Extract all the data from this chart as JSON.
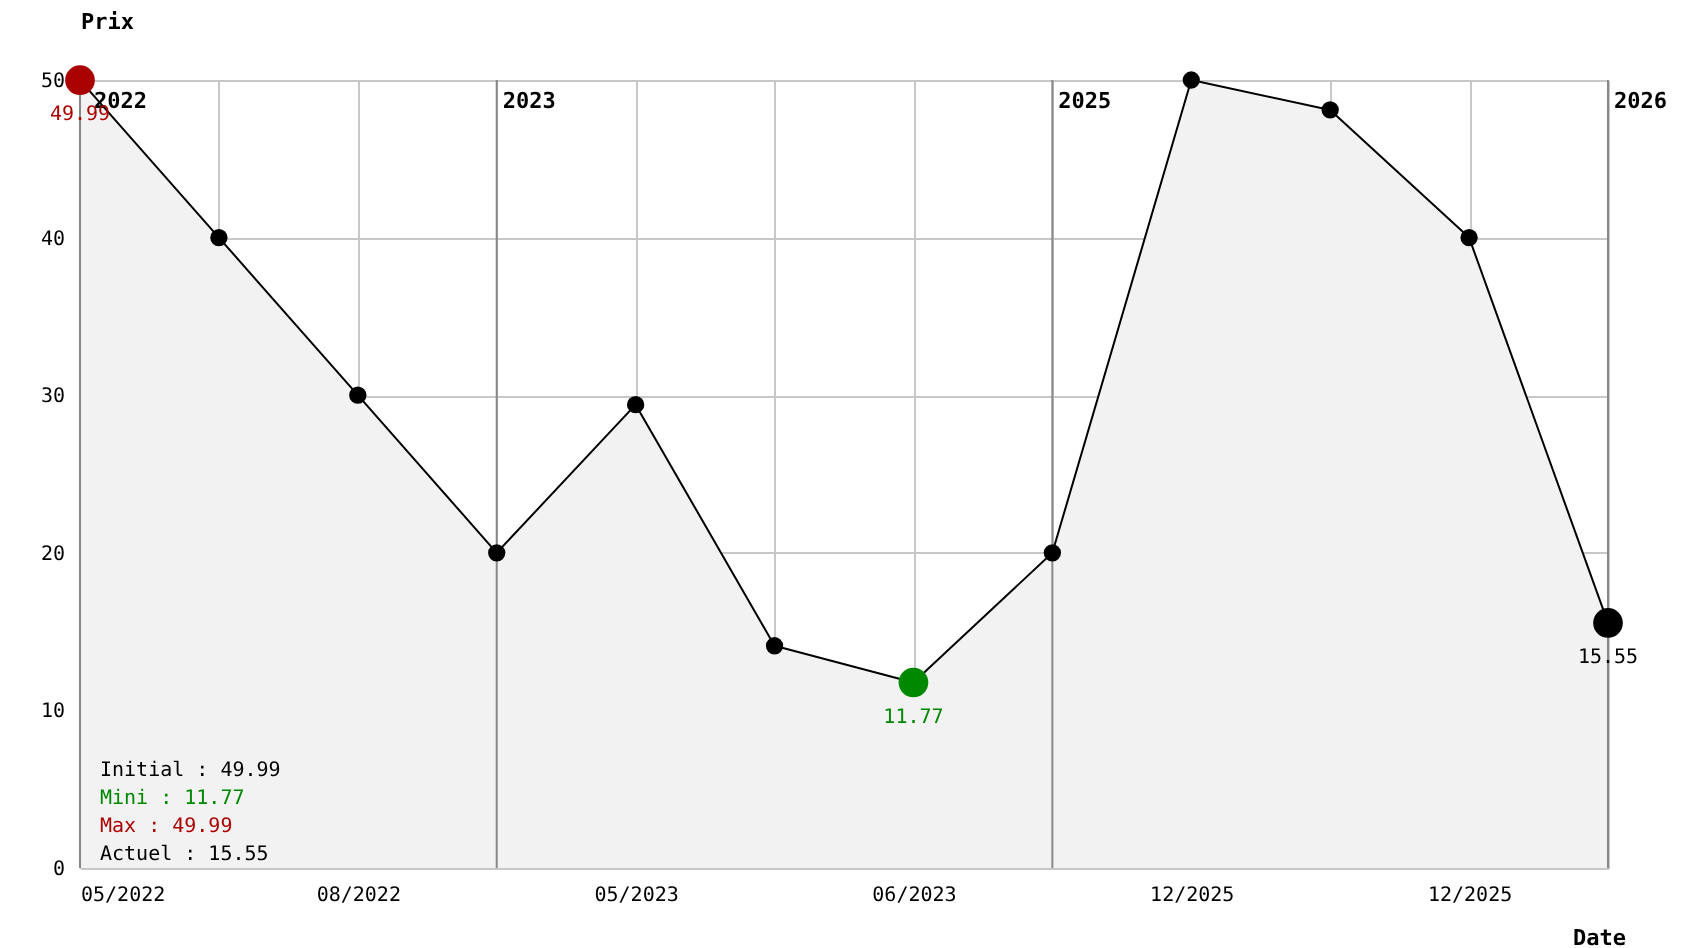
{
  "chart_data": {
    "type": "line",
    "xlabel": "Date",
    "ylabel": "Prix",
    "categories": [
      "05/2022",
      null,
      "08/2022",
      null,
      "05/2023",
      null,
      "06/2023",
      null,
      "12/2025",
      null,
      "12/2025",
      null
    ],
    "ylim": [
      0,
      50
    ],
    "yticks": [
      0,
      10,
      20,
      30,
      40,
      50
    ],
    "series": [
      {
        "color": "#000000",
        "values": [
          49.99,
          40,
          30,
          20,
          29.4,
          14.1,
          11.77,
          20,
          50,
          48.1,
          40,
          15.55
        ]
      }
    ],
    "colors": [
      "#aa0000",
      "#000000",
      "#000000",
      "#000000",
      "#000000",
      "#000000",
      "#008800",
      "#000000",
      "#000000",
      "#000000",
      "#000000",
      "#000000"
    ],
    "value_labels": [
      "49.99",
      null,
      null,
      null,
      null,
      null,
      "11.77",
      null,
      null,
      null,
      null,
      "15.55"
    ],
    "marker": "circle",
    "grid": true,
    "annotations": [
      "2022",
      "2023",
      "2025",
      "2026",
      "Initial : 49.99",
      "Mini : 11.77",
      "Max : 49.99",
      "Actuel : 15.55"
    ]
  }
}
